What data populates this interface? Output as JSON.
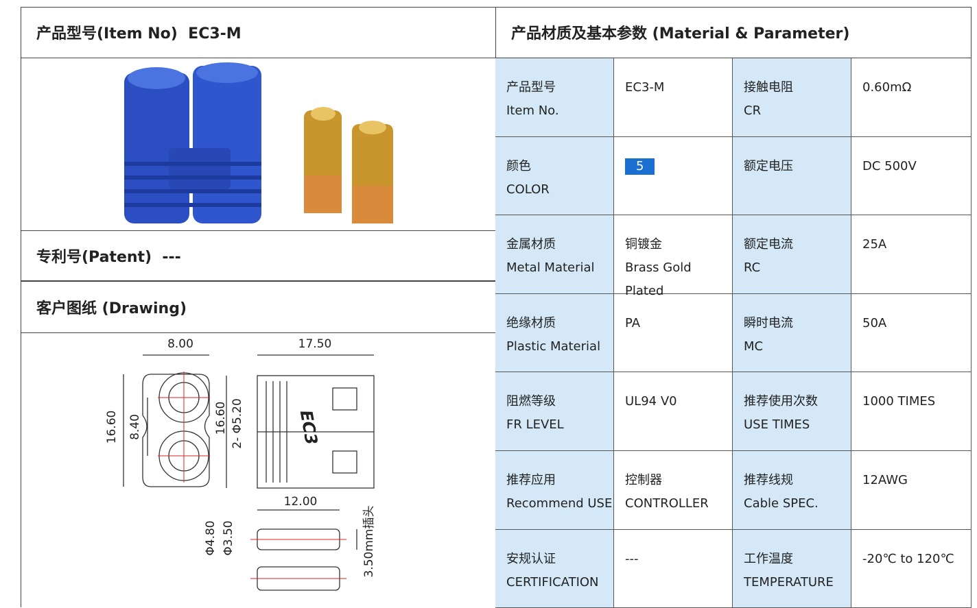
{
  "header": {
    "left_title": "产品型号(Item No)  EC3-M",
    "right_title": "产品材质及基本参数 (Material & Parameter)"
  },
  "patent": "专利号(Patent)  ---",
  "drawing_title": "客户图纸 (Drawing)",
  "drawing": {
    "width": "8.00",
    "length": "17.50",
    "height": "16.60",
    "pitch": "8.40",
    "side_height": "16.60",
    "hole": "2- Φ5.20",
    "pin_length": "12.00",
    "pin_outer": "Φ4.80",
    "pin_inner": "Φ3.50",
    "pin_note": "3.50mm插头",
    "mark": "EC3"
  },
  "table": {
    "rows": [
      [
        [
          "产品型号",
          "Item No."
        ],
        [
          "EC3-M"
        ],
        [
          "接触电阻",
          "CR"
        ],
        [
          "0.60mΩ"
        ]
      ],
      [
        [
          "颜色",
          "COLOR"
        ],
        [
          "5"
        ],
        [
          "额定电压"
        ],
        [
          "DC 500V"
        ]
      ],
      [
        [
          "金属材质",
          "Metal Material"
        ],
        [
          "铜镀金",
          "Brass Gold Plated"
        ],
        [
          "额定电流",
          "RC"
        ],
        [
          "25A"
        ]
      ],
      [
        [
          "绝缘材质",
          "Plastic Material"
        ],
        [
          "PA"
        ],
        [
          "瞬时电流",
          "MC"
        ],
        [
          "50A"
        ]
      ],
      [
        [
          "阻燃等级",
          "FR LEVEL"
        ],
        [
          "UL94 V0"
        ],
        [
          "推荐使用次数",
          "USE TIMES"
        ],
        [
          "1000 TIMES"
        ]
      ],
      [
        [
          "推荐应用",
          "Recommend USE"
        ],
        [
          "控制器",
          "CONTROLLER"
        ],
        [
          "推荐线规",
          "Cable SPEC."
        ],
        [
          "12AWG"
        ]
      ],
      [
        [
          "安规认证",
          "CERTIFICATION"
        ],
        [
          "---"
        ],
        [
          "工作温度",
          "TEMPERATURE"
        ],
        [
          "-20℃ to 120℃"
        ]
      ]
    ]
  }
}
